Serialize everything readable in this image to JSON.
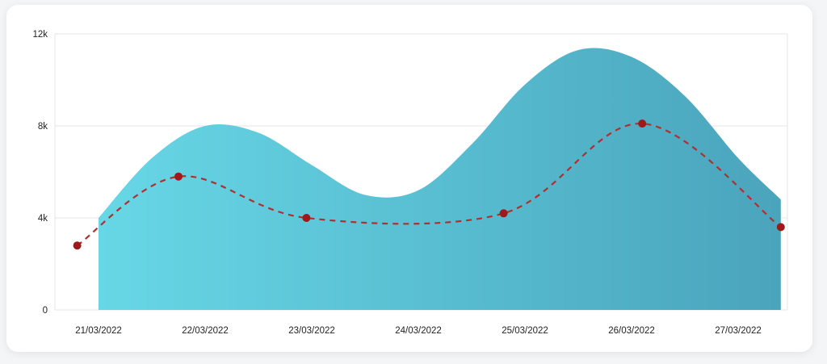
{
  "chart_data": {
    "type": "area",
    "title": "",
    "xlabel": "",
    "ylabel": "",
    "categories": [
      "21/03/2022",
      "22/03/2022",
      "23/03/2022",
      "24/03/2022",
      "25/03/2022",
      "26/03/2022",
      "27/03/2022"
    ],
    "yticks": [
      "0",
      "4k",
      "8k",
      "12k"
    ],
    "ylim": [
      0,
      12000
    ],
    "grid": true,
    "legend": "none",
    "series": [
      {
        "style": "area",
        "x": [
          0,
          0.5,
          1.0,
          1.5,
          2.0,
          2.5,
          3.0,
          3.5,
          4.0,
          4.5,
          5.0,
          5.5,
          6.0,
          6.4
        ],
        "values": [
          4000,
          6600,
          8000,
          7700,
          6300,
          5000,
          5200,
          7200,
          9800,
          11300,
          11000,
          9300,
          6600,
          4800
        ]
      },
      {
        "style": "dashed-line-markers",
        "x": [
          -0.2,
          0.75,
          1.95,
          3.8,
          5.1,
          6.4
        ],
        "values": [
          2800,
          5800,
          4000,
          4200,
          8100,
          3600
        ]
      }
    ],
    "colors": {
      "area_start": "#67d7e6",
      "area_end": "#4aa4bc",
      "line": "#b03030",
      "marker": "#a01818",
      "grid": "#e6e6e6"
    }
  }
}
